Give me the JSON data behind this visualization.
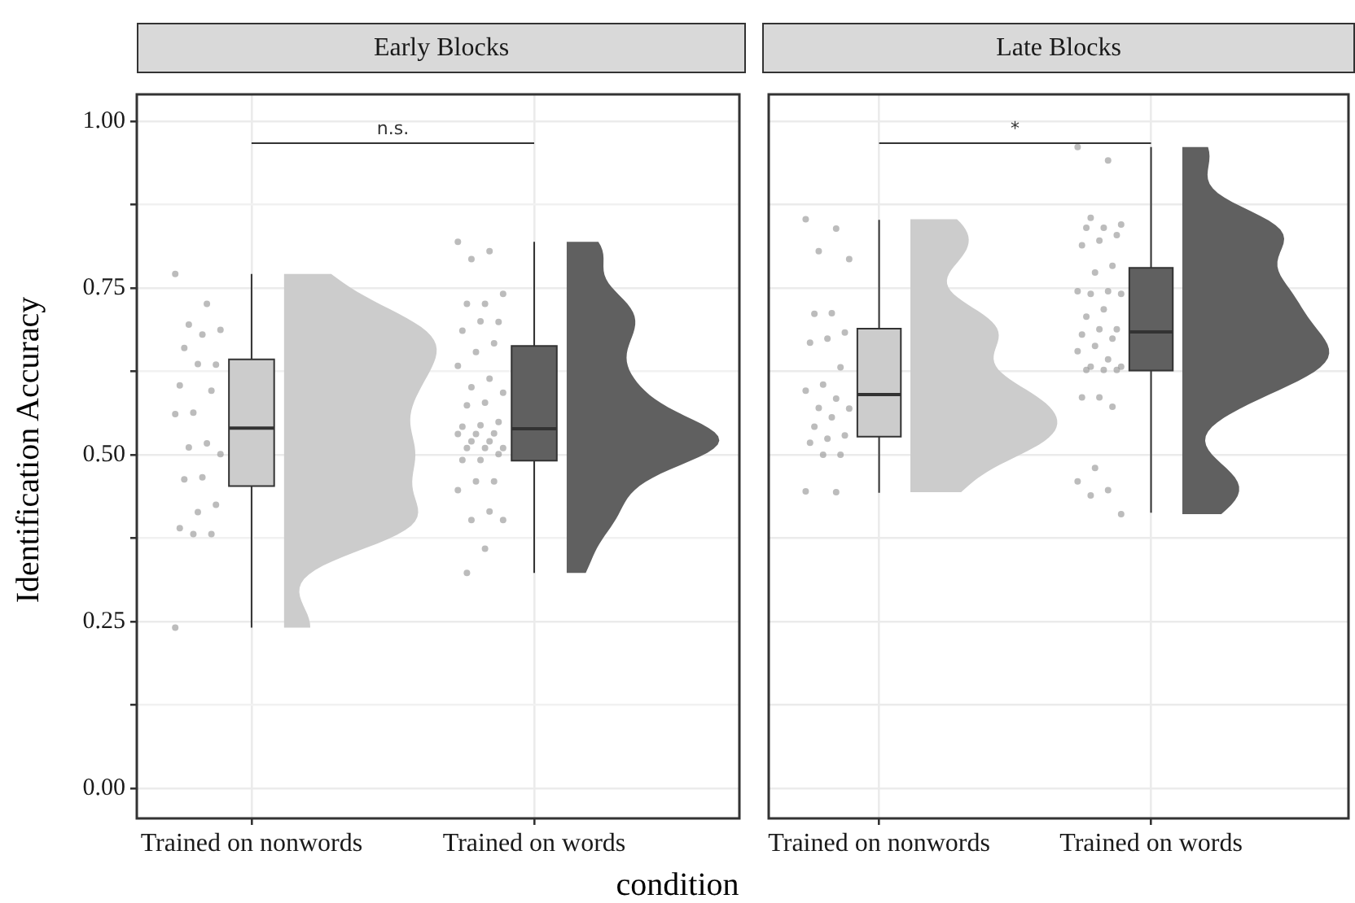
{
  "chart_data": [
    {
      "type": "box",
      "title": "Early Blocks",
      "xlabel": "condition",
      "ylabel": "Identification Accuracy",
      "categories": [
        "Trained on nonwords",
        "Trained on words"
      ],
      "ylim": [
        -0.045,
        1.04
      ],
      "yticks": [
        {
          "value": 0,
          "label": "0.00"
        },
        {
          "value": 0.125,
          "label": null
        },
        {
          "value": 0.25,
          "label": "0.25"
        },
        {
          "value": 0.375,
          "label": null
        },
        {
          "value": 0.5,
          "label": "0.50"
        },
        {
          "value": 0.625,
          "label": null
        },
        {
          "value": 0.75,
          "label": "0.75"
        },
        {
          "value": 0.875,
          "label": null
        },
        {
          "value": 1,
          "label": "1.00"
        }
      ],
      "grid": true,
      "legend": false,
      "annotations": [
        "n.s."
      ],
      "series": [
        {
          "type": "box",
          "colors": [
            "#cccccc",
            "#606060"
          ],
          "boxes": [
            {
              "low": 0.241,
              "q1": 0.453,
              "median": 0.54,
              "q3": 0.643,
              "high": 0.771
            },
            {
              "low": 0.323,
              "q1": 0.491,
              "median": 0.539,
              "q3": 0.663,
              "high": 0.819
            }
          ]
        },
        {
          "type": "scatter",
          "color": "#9a9a9a",
          "x": [
            "Trained on nonwords",
            "Trained on nonwords",
            "Trained on nonwords",
            "Trained on nonwords",
            "Trained on nonwords",
            "Trained on nonwords",
            "Trained on nonwords",
            "Trained on nonwords",
            "Trained on nonwords",
            "Trained on nonwords",
            "Trained on nonwords",
            "Trained on nonwords",
            "Trained on nonwords",
            "Trained on nonwords",
            "Trained on nonwords",
            "Trained on nonwords",
            "Trained on nonwords",
            "Trained on nonwords",
            "Trained on nonwords",
            "Trained on nonwords",
            "Trained on nonwords",
            "Trained on nonwords",
            "Trained on nonwords"
          ],
          "values": [
            0.771,
            0.726,
            0.695,
            0.687,
            0.68,
            0.66,
            0.635,
            0.636,
            0.604,
            0.596,
            0.563,
            0.561,
            0.517,
            0.511,
            0.501,
            0.466,
            0.463,
            0.425,
            0.414,
            0.39,
            0.381,
            0.381,
            0.241
          ]
        },
        {
          "type": "scatter",
          "color": "#9a9a9a",
          "x": [
            "Trained on words",
            "Trained on words",
            "Trained on words",
            "Trained on words",
            "Trained on words",
            "Trained on words",
            "Trained on words",
            "Trained on words",
            "Trained on words",
            "Trained on words",
            "Trained on words",
            "Trained on words",
            "Trained on words",
            "Trained on words",
            "Trained on words",
            "Trained on words",
            "Trained on words",
            "Trained on words",
            "Trained on words",
            "Trained on words",
            "Trained on words",
            "Trained on words",
            "Trained on words",
            "Trained on words",
            "Trained on words",
            "Trained on words",
            "Trained on words",
            "Trained on words",
            "Trained on words",
            "Trained on words",
            "Trained on words",
            "Trained on words",
            "Trained on words",
            "Trained on words",
            "Trained on words",
            "Trained on words",
            "Trained on words",
            "Trained on words",
            "Trained on words"
          ],
          "values": [
            0.819,
            0.805,
            0.793,
            0.741,
            0.726,
            0.726,
            0.699,
            0.7,
            0.686,
            0.667,
            0.654,
            0.633,
            0.614,
            0.601,
            0.593,
            0.578,
            0.574,
            0.549,
            0.544,
            0.542,
            0.532,
            0.531,
            0.531,
            0.52,
            0.52,
            0.51,
            0.51,
            0.51,
            0.501,
            0.492,
            0.492,
            0.46,
            0.46,
            0.447,
            0.415,
            0.402,
            0.402,
            0.359,
            0.323
          ]
        }
      ]
    },
    {
      "type": "box",
      "title": "Late Blocks",
      "categories": [
        "Trained on nonwords",
        "Trained on words"
      ],
      "ylim": [
        -0.045,
        1.04
      ],
      "yticks": [
        {
          "value": 0,
          "label": null
        },
        {
          "value": 0.125,
          "label": null
        },
        {
          "value": 0.25,
          "label": null
        },
        {
          "value": 0.375,
          "label": null
        },
        {
          "value": 0.5,
          "label": null
        },
        {
          "value": 0.625,
          "label": null
        },
        {
          "value": 0.75,
          "label": null
        },
        {
          "value": 0.875,
          "label": null
        },
        {
          "value": 1,
          "label": null
        }
      ],
      "grid": true,
      "legend": false,
      "tick_labels": "x",
      "annotations": [
        "*"
      ],
      "series": [
        {
          "type": "box",
          "colors": [
            "#cccccc",
            "#606060"
          ],
          "boxes": [
            {
              "low": 0.443,
              "q1": 0.527,
              "median": 0.59,
              "q3": 0.689,
              "high": 0.852
            },
            {
              "low": 0.413,
              "q1": 0.626,
              "median": 0.684,
              "q3": 0.78,
              "high": 0.961
            }
          ]
        },
        {
          "type": "scatter",
          "color": "#9a9a9a",
          "x": [
            "Trained on nonwords",
            "Trained on nonwords",
            "Trained on nonwords",
            "Trained on nonwords",
            "Trained on nonwords",
            "Trained on nonwords",
            "Trained on nonwords",
            "Trained on nonwords",
            "Trained on nonwords",
            "Trained on nonwords",
            "Trained on nonwords",
            "Trained on nonwords",
            "Trained on nonwords",
            "Trained on nonwords",
            "Trained on nonwords",
            "Trained on nonwords",
            "Trained on nonwords",
            "Trained on nonwords",
            "Trained on nonwords",
            "Trained on nonwords",
            "Trained on nonwords",
            "Trained on nonwords",
            "Trained on nonwords",
            "Trained on nonwords"
          ],
          "values": [
            0.853,
            0.839,
            0.805,
            0.793,
            0.712,
            0.711,
            0.683,
            0.674,
            0.668,
            0.631,
            0.605,
            0.596,
            0.584,
            0.57,
            0.569,
            0.556,
            0.542,
            0.529,
            0.524,
            0.518,
            0.5,
            0.5,
            0.445,
            0.444
          ]
        },
        {
          "type": "scatter",
          "color": "#9a9a9a",
          "x": [
            "Trained on words",
            "Trained on words",
            "Trained on words",
            "Trained on words",
            "Trained on words",
            "Trained on words",
            "Trained on words",
            "Trained on words",
            "Trained on words",
            "Trained on words",
            "Trained on words",
            "Trained on words",
            "Trained on words",
            "Trained on words",
            "Trained on words",
            "Trained on words",
            "Trained on words",
            "Trained on words",
            "Trained on words",
            "Trained on words",
            "Trained on words",
            "Trained on words",
            "Trained on words",
            "Trained on words",
            "Trained on words",
            "Trained on words",
            "Trained on words",
            "Trained on words",
            "Trained on words",
            "Trained on words",
            "Trained on words",
            "Trained on words",
            "Trained on words",
            "Trained on words",
            "Trained on words",
            "Trained on words",
            "Trained on words"
          ],
          "values": [
            0.961,
            0.941,
            0.855,
            0.845,
            0.84,
            0.84,
            0.829,
            0.821,
            0.814,
            0.783,
            0.773,
            0.745,
            0.745,
            0.741,
            0.741,
            0.718,
            0.707,
            0.688,
            0.688,
            0.68,
            0.674,
            0.663,
            0.655,
            0.643,
            0.632,
            0.632,
            0.627,
            0.627,
            0.627,
            0.586,
            0.586,
            0.572,
            0.48,
            0.46,
            0.447,
            0.439,
            0.411
          ]
        }
      ]
    }
  ]
}
